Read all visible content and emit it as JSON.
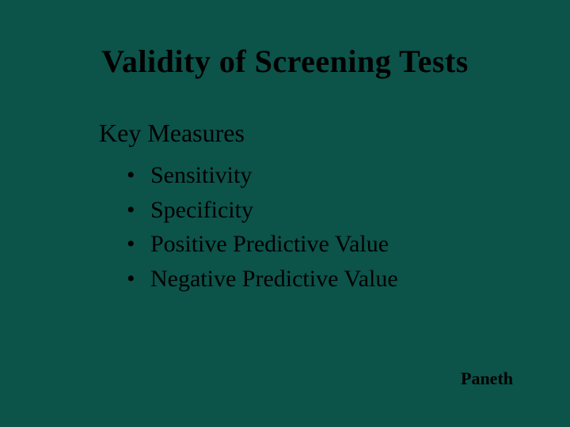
{
  "slide": {
    "background_color": "#0c534a",
    "text_color": "#000000",
    "title": "Validity of Screening Tests",
    "title_fontsize": 40,
    "subtitle": "Key Measures",
    "subtitle_fontsize": 32,
    "bullets": [
      "Sensitivity",
      "Specificity",
      "Positive Predictive Value",
      "Negative Predictive Value"
    ],
    "bullet_fontsize": 30,
    "bullet_marker": "•",
    "footer": "Paneth",
    "footer_fontsize": 22
  }
}
